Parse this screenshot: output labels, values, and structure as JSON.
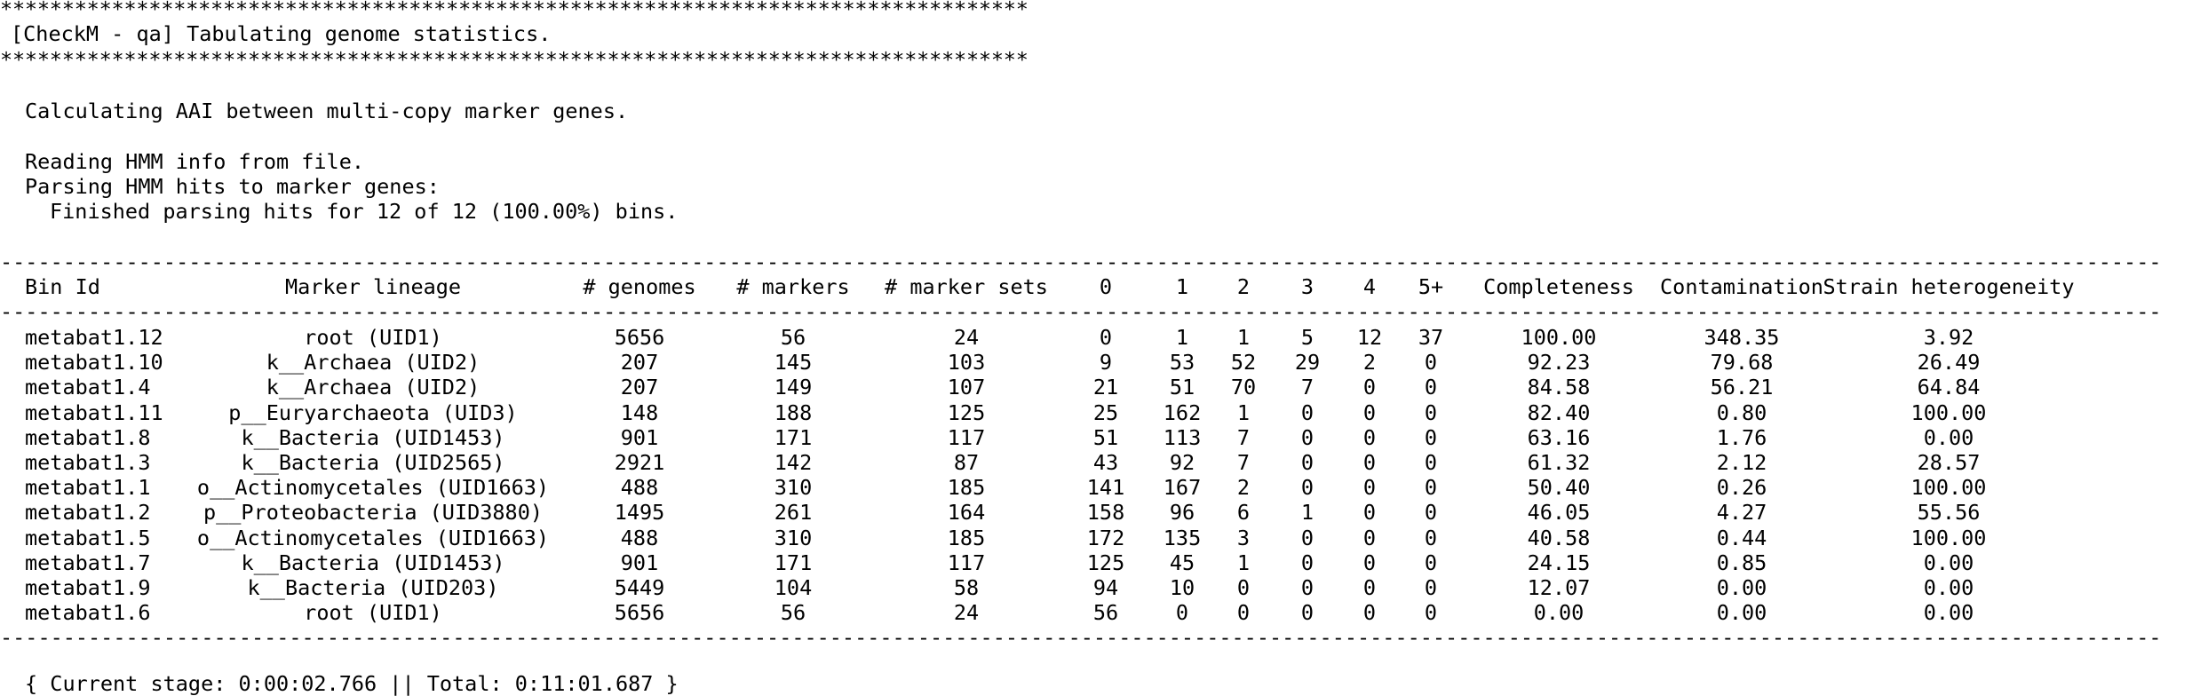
{
  "banner": {
    "stars": "***********************************************************************************",
    "title": "[CheckM - qa] Tabulating genome statistics."
  },
  "messages": {
    "aai": "Calculating AAI between multi-copy marker genes.",
    "reading": "Reading HMM info from file.",
    "parsing": "Parsing HMM hits to marker genes:",
    "finished": "Finished parsing hits for 12 of 12 (100.00%) bins."
  },
  "table": {
    "separator": "------------------------------------------------------------------------------------------------------------------------------------------------------------------------------------------------",
    "headers": {
      "bin_id": "Bin Id",
      "marker_lineage": "Marker lineage",
      "genomes": "# genomes",
      "markers": "# markers",
      "marker_sets": "# marker sets",
      "c0": "0",
      "c1": "1",
      "c2": "2",
      "c3": "3",
      "c4": "4",
      "c5": "5+",
      "completeness": "Completeness",
      "contamination": "Contamination",
      "strain": "Strain heterogeneity"
    },
    "rows": [
      {
        "bin_id": "metabat1.12",
        "lineage": "root (UID1)",
        "genomes": "5656",
        "markers": "56",
        "marker_sets": "24",
        "c0": "0",
        "c1": "1",
        "c2": "1",
        "c3": "5",
        "c4": "12",
        "c5": "37",
        "completeness": "100.00",
        "contamination": "348.35",
        "strain": "3.92"
      },
      {
        "bin_id": "metabat1.10",
        "lineage": "k__Archaea (UID2)",
        "genomes": "207",
        "markers": "145",
        "marker_sets": "103",
        "c0": "9",
        "c1": "53",
        "c2": "52",
        "c3": "29",
        "c4": "2",
        "c5": "0",
        "completeness": "92.23",
        "contamination": "79.68",
        "strain": "26.49"
      },
      {
        "bin_id": "metabat1.4",
        "lineage": "k__Archaea (UID2)",
        "genomes": "207",
        "markers": "149",
        "marker_sets": "107",
        "c0": "21",
        "c1": "51",
        "c2": "70",
        "c3": "7",
        "c4": "0",
        "c5": "0",
        "completeness": "84.58",
        "contamination": "56.21",
        "strain": "64.84"
      },
      {
        "bin_id": "metabat1.11",
        "lineage": "p__Euryarchaeota (UID3)",
        "genomes": "148",
        "markers": "188",
        "marker_sets": "125",
        "c0": "25",
        "c1": "162",
        "c2": "1",
        "c3": "0",
        "c4": "0",
        "c5": "0",
        "completeness": "82.40",
        "contamination": "0.80",
        "strain": "100.00"
      },
      {
        "bin_id": "metabat1.8",
        "lineage": "k__Bacteria (UID1453)",
        "genomes": "901",
        "markers": "171",
        "marker_sets": "117",
        "c0": "51",
        "c1": "113",
        "c2": "7",
        "c3": "0",
        "c4": "0",
        "c5": "0",
        "completeness": "63.16",
        "contamination": "1.76",
        "strain": "0.00"
      },
      {
        "bin_id": "metabat1.3",
        "lineage": "k__Bacteria (UID2565)",
        "genomes": "2921",
        "markers": "142",
        "marker_sets": "87",
        "c0": "43",
        "c1": "92",
        "c2": "7",
        "c3": "0",
        "c4": "0",
        "c5": "0",
        "completeness": "61.32",
        "contamination": "2.12",
        "strain": "28.57"
      },
      {
        "bin_id": "metabat1.1",
        "lineage": "o__Actinomycetales (UID1663)",
        "genomes": "488",
        "markers": "310",
        "marker_sets": "185",
        "c0": "141",
        "c1": "167",
        "c2": "2",
        "c3": "0",
        "c4": "0",
        "c5": "0",
        "completeness": "50.40",
        "contamination": "0.26",
        "strain": "100.00"
      },
      {
        "bin_id": "metabat1.2",
        "lineage": "p__Proteobacteria (UID3880)",
        "genomes": "1495",
        "markers": "261",
        "marker_sets": "164",
        "c0": "158",
        "c1": "96",
        "c2": "6",
        "c3": "1",
        "c4": "0",
        "c5": "0",
        "completeness": "46.05",
        "contamination": "4.27",
        "strain": "55.56"
      },
      {
        "bin_id": "metabat1.5",
        "lineage": "o__Actinomycetales (UID1663)",
        "genomes": "488",
        "markers": "310",
        "marker_sets": "185",
        "c0": "172",
        "c1": "135",
        "c2": "3",
        "c3": "0",
        "c4": "0",
        "c5": "0",
        "completeness": "40.58",
        "contamination": "0.44",
        "strain": "100.00"
      },
      {
        "bin_id": "metabat1.7",
        "lineage": "k__Bacteria (UID1453)",
        "genomes": "901",
        "markers": "171",
        "marker_sets": "117",
        "c0": "125",
        "c1": "45",
        "c2": "1",
        "c3": "0",
        "c4": "0",
        "c5": "0",
        "completeness": "24.15",
        "contamination": "0.85",
        "strain": "0.00"
      },
      {
        "bin_id": "metabat1.9",
        "lineage": "k__Bacteria (UID203)",
        "genomes": "5449",
        "markers": "104",
        "marker_sets": "58",
        "c0": "94",
        "c1": "10",
        "c2": "0",
        "c3": "0",
        "c4": "0",
        "c5": "0",
        "completeness": "12.07",
        "contamination": "0.00",
        "strain": "0.00"
      },
      {
        "bin_id": "metabat1.6",
        "lineage": "root (UID1)",
        "genomes": "5656",
        "markers": "56",
        "marker_sets": "24",
        "c0": "56",
        "c1": "0",
        "c2": "0",
        "c3": "0",
        "c4": "0",
        "c5": "0",
        "completeness": "0.00",
        "contamination": "0.00",
        "strain": "0.00"
      }
    ]
  },
  "footer": {
    "timing": "{ Current stage: 0:00:02.766 || Total: 0:11:01.687 }"
  }
}
